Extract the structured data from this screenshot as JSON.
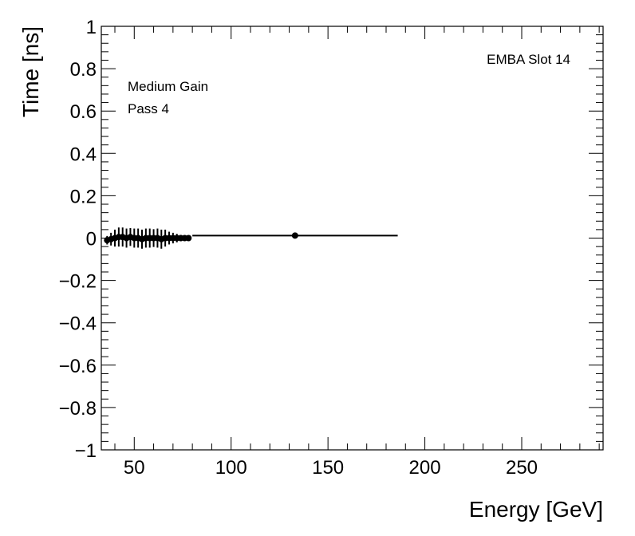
{
  "chart_data": {
    "type": "scatter",
    "title": "",
    "xlabel": "Energy [GeV]",
    "ylabel": "Time [ns]",
    "xlim": [
      33,
      292
    ],
    "ylim": [
      -1,
      1
    ],
    "x_ticks": [
      50,
      100,
      150,
      200,
      250
    ],
    "x_tick_labels": [
      "50",
      "100",
      "150",
      "200",
      "250"
    ],
    "y_ticks": [
      -1,
      -0.8,
      -0.6,
      -0.4,
      -0.2,
      0,
      0.2,
      0.4,
      0.6,
      0.8,
      1
    ],
    "y_tick_labels": [
      "−1",
      "−0.8",
      "−0.6",
      "−0.4",
      "−0.2",
      "0",
      "0.2",
      "0.4",
      "0.6",
      "0.8",
      "1"
    ],
    "grid": false,
    "annotations": [
      "EMBA Slot 14",
      "Medium Gain",
      "Pass 4"
    ],
    "series": [
      {
        "points": [
          {
            "x": 36,
            "y": -0.01,
            "ey": 0.02,
            "ex": 0.8
          },
          {
            "x": 38,
            "y": -0.005,
            "ey": 0.03,
            "ex": 0.8
          },
          {
            "x": 40,
            "y": 0.0,
            "ey": 0.04,
            "ex": 0.8
          },
          {
            "x": 42,
            "y": 0.005,
            "ey": 0.045,
            "ex": 0.8
          },
          {
            "x": 44,
            "y": 0.005,
            "ey": 0.045,
            "ex": 0.8
          },
          {
            "x": 46,
            "y": 0.0,
            "ey": 0.045,
            "ex": 0.8
          },
          {
            "x": 48,
            "y": 0.005,
            "ey": 0.042,
            "ex": 0.8
          },
          {
            "x": 50,
            "y": 0.0,
            "ey": 0.045,
            "ex": 0.8
          },
          {
            "x": 52,
            "y": 0.0,
            "ey": 0.045,
            "ex": 0.8
          },
          {
            "x": 54,
            "y": -0.005,
            "ey": 0.045,
            "ex": 0.8
          },
          {
            "x": 56,
            "y": 0.0,
            "ey": 0.045,
            "ex": 0.8
          },
          {
            "x": 58,
            "y": 0.0,
            "ey": 0.045,
            "ex": 0.8
          },
          {
            "x": 60,
            "y": 0.0,
            "ey": 0.042,
            "ex": 0.8
          },
          {
            "x": 62,
            "y": 0.0,
            "ey": 0.045,
            "ex": 0.8
          },
          {
            "x": 64,
            "y": -0.005,
            "ey": 0.045,
            "ex": 0.8
          },
          {
            "x": 66,
            "y": 0.0,
            "ey": 0.04,
            "ex": 0.8
          },
          {
            "x": 68,
            "y": 0.0,
            "ey": 0.03,
            "ex": 0.8
          },
          {
            "x": 70,
            "y": 0.0,
            "ey": 0.025,
            "ex": 0.8
          },
          {
            "x": 72,
            "y": 0.0,
            "ey": 0.02,
            "ex": 0.8
          },
          {
            "x": 74,
            "y": 0.0,
            "ey": 0.015,
            "ex": 0.8
          },
          {
            "x": 76,
            "y": 0.0,
            "ey": 0.012,
            "ex": 0.8
          },
          {
            "x": 78,
            "y": 0.0,
            "ey": 0.01,
            "ex": 0.8
          },
          {
            "x": 133,
            "y": 0.012,
            "ey": 0.005,
            "ex": 53
          }
        ]
      }
    ]
  }
}
